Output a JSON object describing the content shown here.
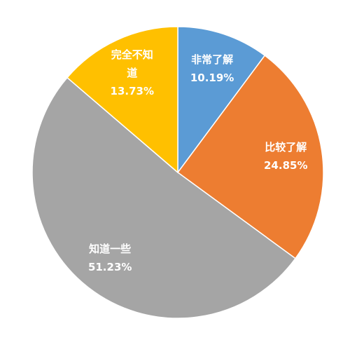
{
  "chart_data": {
    "type": "pie",
    "categories": [
      "非常了解",
      "比较了解",
      "知道一些",
      "完全不知道"
    ],
    "values": [
      10.19,
      24.85,
      51.23,
      13.73
    ],
    "value_labels": [
      "10.19%",
      "24.85%",
      "51.23%",
      "13.73%"
    ],
    "colors": [
      "#5b9bd5",
      "#ed7d31",
      "#a5a5a5",
      "#ffc000"
    ]
  }
}
